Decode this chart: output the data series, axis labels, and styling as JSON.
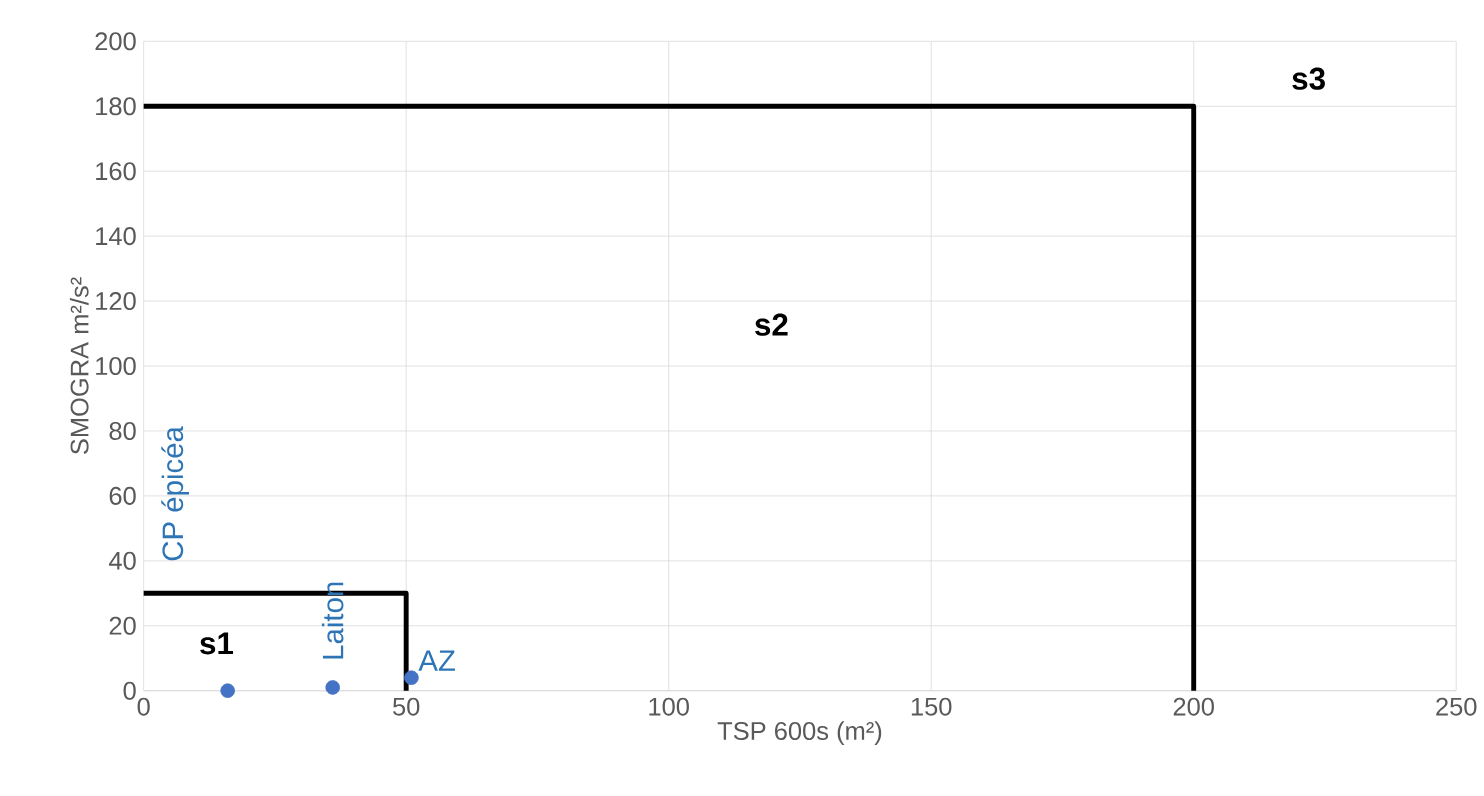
{
  "chart_data": {
    "type": "scatter",
    "xlabel": "TSP 600s (m²)",
    "ylabel": "SMOGRA m²/s²",
    "xlim": [
      0,
      250
    ],
    "ylim": [
      0,
      200
    ],
    "xticks": [
      0,
      50,
      100,
      150,
      200,
      250
    ],
    "yticks": [
      0,
      20,
      40,
      60,
      80,
      100,
      120,
      140,
      160,
      180,
      200
    ],
    "grid": true,
    "series": [
      {
        "type": "line",
        "color": "#000000",
        "x": [
          0,
          50,
          50
        ],
        "values": [
          30,
          30,
          0
        ],
        "marker": "none",
        "line_style": "solid"
      },
      {
        "type": "line",
        "color": "#000000",
        "x": [
          0,
          200,
          200
        ],
        "values": [
          180,
          180,
          0
        ],
        "marker": "none",
        "line_style": "solid"
      },
      {
        "color": "#4472c4",
        "x": [
          16,
          36,
          51
        ],
        "values": [
          0,
          1,
          4
        ],
        "marker": "circle"
      }
    ],
    "annotations": [
      "CP épicéa",
      {
        "text": "Laiton",
        "x": 36,
        "y": 1
      },
      {
        "text": "AZ",
        "x": 51,
        "y": 4
      },
      "s1",
      "s2",
      "s3"
    ]
  }
}
